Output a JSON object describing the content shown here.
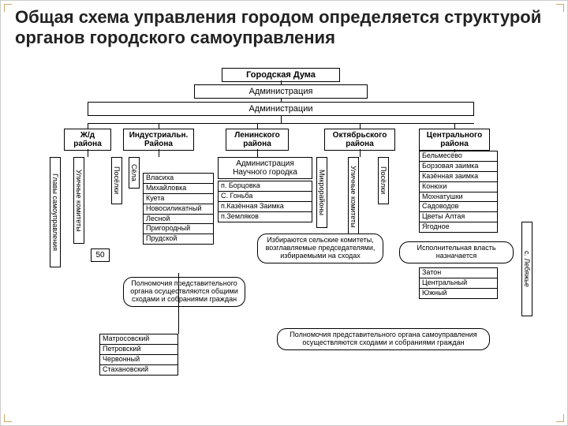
{
  "title": "Общая схема управления городом определяется структурой органов городского самоуправления",
  "top": {
    "duma": "Городская Дума",
    "admin1": "Администрация",
    "admin2": "Администрации"
  },
  "districts": {
    "zd": "Ж/д района",
    "ind": "Индустриальн. Района",
    "len": "Ленинского района",
    "okt": "Октябрьского района",
    "cen": "Центрального района"
  },
  "science": "Администрация Научного городка",
  "vlabels": {
    "ulkom1": "Уличные комитеты",
    "glavy": "Главы самоуправления",
    "poselki1": "Посёлки",
    "sela": "Сёла",
    "mikro": "Микрорайоны",
    "ulkom2": "Уличные комитеты",
    "poselki2": "Посёлки",
    "lebyaj": "с. Лебяжье"
  },
  "fifty": "50",
  "col2": [
    "Власиха",
    "Михайловка",
    "Куета",
    "Новосиликатный",
    "Лесной",
    "Пригородный",
    "Прудской"
  ],
  "col3": [
    "п. Борцовка",
    "С. Гоньба",
    "п.Казённая Заимка",
    "п.Земляков"
  ],
  "col5": [
    "Бельмесёво",
    "Борзовая заимка",
    "Казённая заимка",
    "Конюхи",
    "Мохнатушки",
    "Садоводов",
    "Цветы Алтая",
    "Ягодное"
  ],
  "col5b": [
    "Затон",
    "Центральный",
    "Южный"
  ],
  "bottom": [
    "Матросовский",
    "Петровский",
    "Червонный",
    "Стахановский"
  ],
  "notes": {
    "n1": "Полномочия представительного органа осуществляются общими сходами и собраниями граждан",
    "n2": "Избираются сельские комитеты, возглавляемые председателями, избираемыми на сходах",
    "n3": "Исполнительная власть назначается",
    "n4": "Полномочия представительного органа самоуправления осуществляются сходами и собраниями граждан"
  }
}
